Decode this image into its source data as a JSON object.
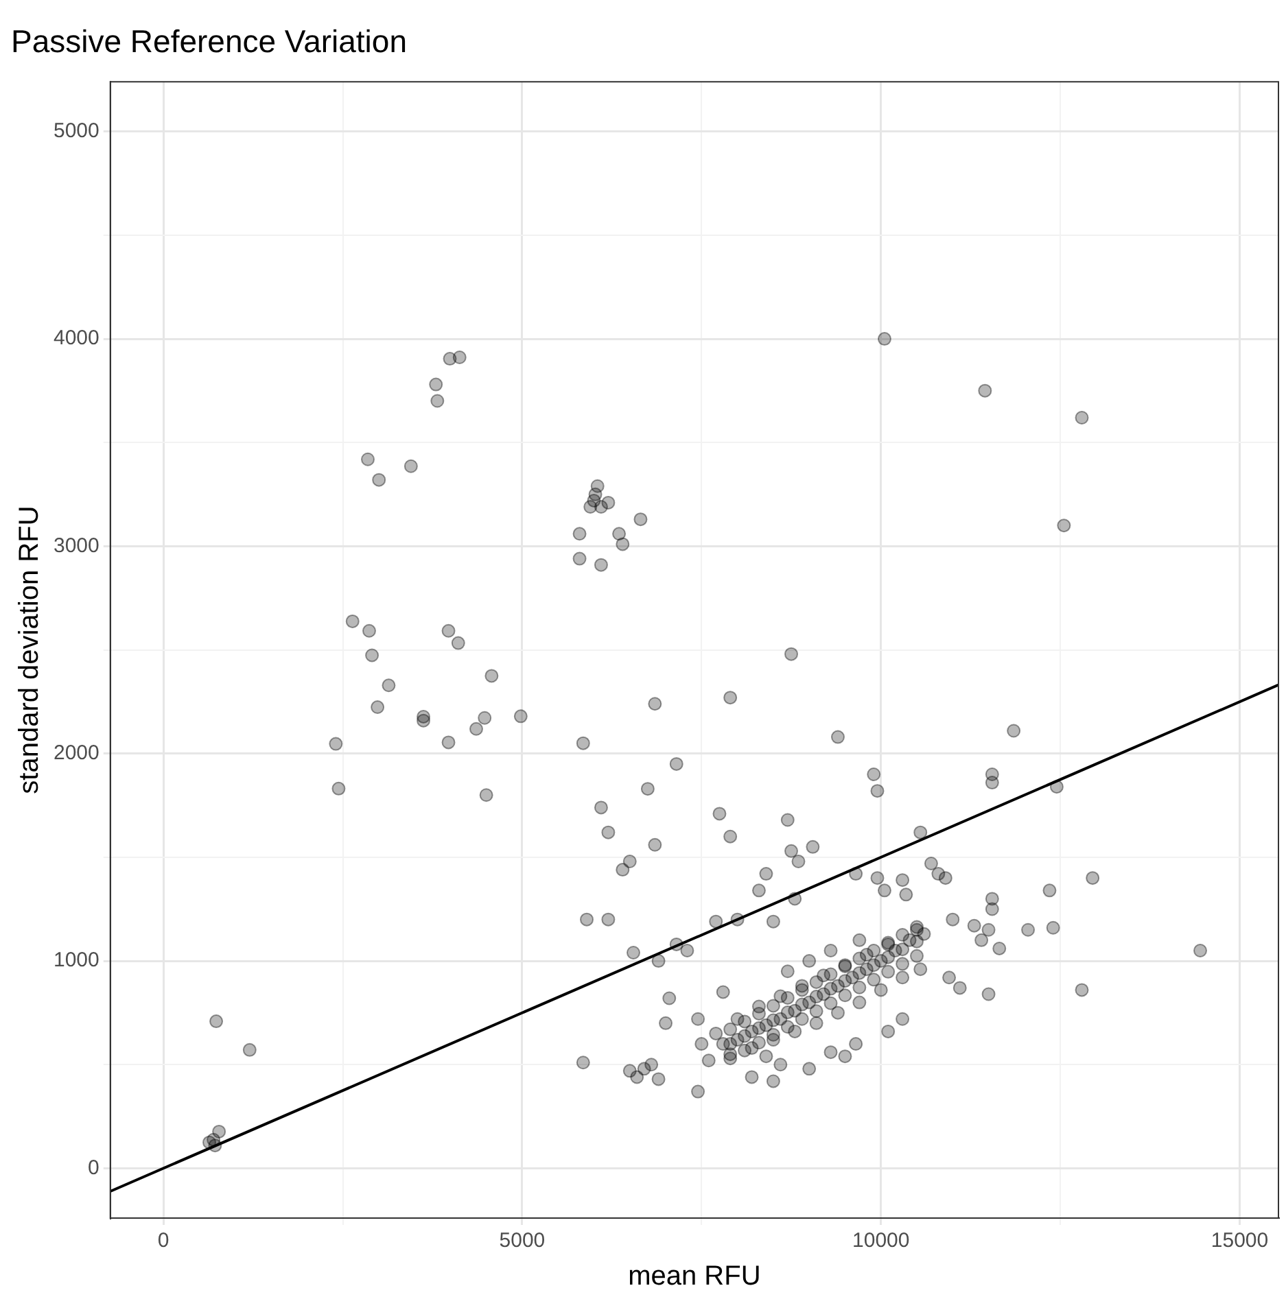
{
  "chart_data": {
    "type": "scatter",
    "title": "Passive Reference Variation",
    "xlabel": "mean RFU",
    "ylabel": "standard deviation RFU",
    "xlim": [
      -740,
      15540
    ],
    "ylim": [
      -240,
      5240
    ],
    "xticks": [
      0,
      {
        "value": 2500,
        "label": null
      },
      5000,
      {
        "value": 7500,
        "label": null
      },
      10000,
      {
        "value": 12500,
        "label": null
      },
      15000
    ],
    "yticks": [
      0,
      {
        "value": 500,
        "label": null
      },
      1000,
      {
        "value": 1500,
        "label": null
      },
      2000,
      {
        "value": 2500,
        "label": null
      },
      3000,
      {
        "value": 3500,
        "label": null
      },
      4000,
      {
        "value": 4500,
        "label": null
      },
      5000
    ],
    "grid": true,
    "legend": false,
    "series": [
      {
        "marker": "circle",
        "color": "#000000",
        "x": [
          775,
          698,
          640,
          720,
          736,
          1202,
          2403,
          2442,
          2636,
          2868,
          2907,
          2984,
          3140,
          2849,
          3004,
          3450,
          3624,
          3624,
          3798,
          3818,
          3992,
          4128,
          3973,
          4109,
          3973,
          4360,
          4477,
          4574,
          4500,
          4980,
          5800,
          5800,
          5950,
          6000,
          6020,
          6050,
          6100,
          6200,
          6350,
          6400,
          6650,
          6100,
          5850,
          6850,
          7900,
          8750,
          9400,
          7150,
          6100,
          6200,
          6750,
          6400,
          6500,
          6850,
          5900,
          6200,
          7750,
          7900,
          8700,
          8750,
          9050,
          8850,
          9900,
          9950,
          10050,
          11450,
          12800,
          12550,
          11550,
          11550,
          11850,
          12450,
          10550,
          12950,
          12350,
          14450,
          12800,
          12050,
          12400,
          11550,
          11550,
          5850,
          6500,
          6700,
          7450,
          7700,
          7300,
          7150,
          6900,
          7050,
          7000,
          6550,
          6800,
          6900,
          6600,
          8000,
          8500,
          8300,
          8400,
          8800,
          9650,
          9950,
          10050,
          10300,
          10350,
          10700,
          10800,
          10900,
          11000,
          11300,
          11500,
          11400,
          11650,
          10950,
          11100,
          11500,
          10550,
          10300,
          10100,
          9650,
          9300,
          9500,
          9000,
          8600,
          8200,
          8500,
          7600,
          7500,
          7700,
          7450,
          7800,
          7800,
          8000,
          8200,
          8400,
          8600,
          8800,
          9000,
          9200,
          9400,
          9600,
          9800,
          10000,
          10200,
          10400,
          8000,
          8300,
          8600,
          8900,
          9200,
          9500,
          9800,
          10100,
          8200,
          8500,
          8800,
          9100,
          9400,
          9700,
          10000,
          10300,
          10500,
          10600,
          8400,
          7900,
          9000,
          9300,
          9700,
          8700,
          7900,
          7900,
          7900,
          8100,
          8100,
          8100,
          8300,
          8300,
          8300,
          8500,
          8500,
          8500,
          8700,
          8700,
          8700,
          8900,
          8900,
          8900,
          9100,
          9100,
          9100,
          9300,
          9300,
          9300,
          9500,
          9500,
          9500,
          9700,
          9700,
          9700,
          9900,
          9900,
          9900,
          10100,
          10100,
          10100,
          10300,
          10300,
          10300,
          10500,
          10500,
          10500
        ],
        "values": [
          177,
          138,
          125,
          110,
          709,
          571,
          2047,
          1831,
          2638,
          2592,
          2474,
          2224,
          2329,
          3419,
          3320,
          3386,
          2178,
          2159,
          3780,
          3701,
          3904,
          3911,
          2592,
          2533,
          2054,
          2119,
          2172,
          2375,
          1800,
          2180,
          3060,
          2940,
          3190,
          3220,
          3250,
          3290,
          3190,
          3210,
          3060,
          3010,
          3130,
          2910,
          2050,
          2240,
          2270,
          2480,
          2080,
          1950,
          1740,
          1620,
          1830,
          1440,
          1480,
          1560,
          1200,
          1200,
          1710,
          1600,
          1680,
          1530,
          1550,
          1480,
          1900,
          1820,
          4000,
          3750,
          3620,
          3100,
          1900,
          1860,
          2110,
          1840,
          1620,
          1400,
          1340,
          1050,
          860,
          1150,
          1160,
          1300,
          1250,
          510,
          470,
          480,
          370,
          1190,
          1050,
          1080,
          1000,
          820,
          700,
          1040,
          500,
          430,
          440,
          1200,
          1190,
          1340,
          1420,
          1300,
          1420,
          1400,
          1340,
          1390,
          1320,
          1470,
          1420,
          1400,
          1200,
          1170,
          1150,
          1100,
          1060,
          920,
          870,
          840,
          960,
          720,
          660,
          600,
          560,
          540,
          480,
          500,
          440,
          420,
          520,
          600,
          650,
          720,
          850,
          600,
          620,
          660,
          690,
          720,
          760,
          800,
          840,
          880,
          920,
          960,
          1000,
          1050,
          1100,
          720,
          780,
          830,
          880,
          930,
          980,
          1030,
          1080,
          580,
          620,
          660,
          700,
          750,
          800,
          860,
          920,
          1150,
          1130,
          540,
          550,
          1000,
          1050,
          1100,
          950,
          530,
          600,
          670,
          568,
          638,
          708,
          606,
          676,
          746,
          644,
          714,
          784,
          682,
          752,
          822,
          720,
          790,
          860,
          758,
          828,
          898,
          796,
          866,
          936,
          834,
          904,
          974,
          872,
          942,
          1012,
          910,
          980,
          1050,
          948,
          1018,
          1088,
          986,
          1056,
          1126,
          1024,
          1094,
          1164
        ]
      },
      {
        "type": "line",
        "color": "#000000",
        "x": [
          -740,
          15540
        ],
        "values": [
          -111,
          2331
        ]
      }
    ]
  }
}
